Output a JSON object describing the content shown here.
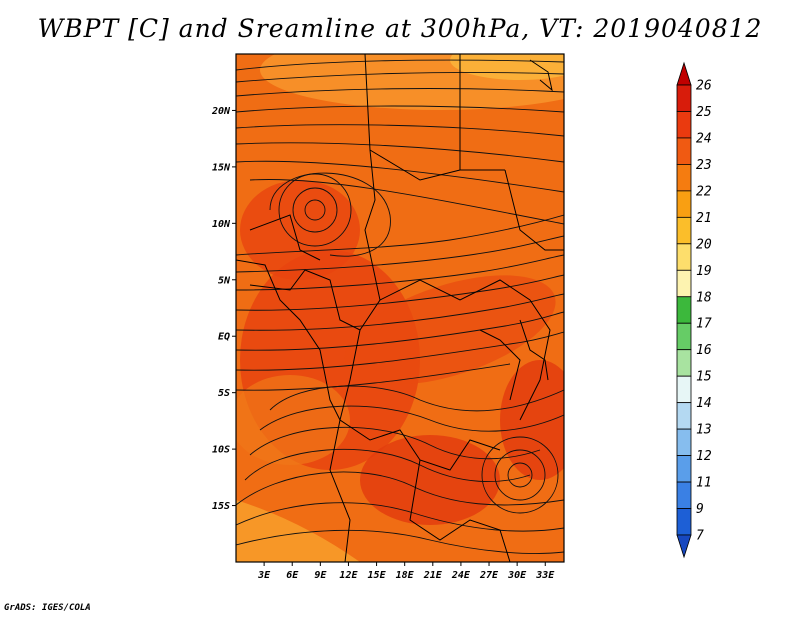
{
  "chart_data": {
    "type": "heatmap",
    "title": "WBPT [C] and Sreamline at 300hPa, VT: 2019040812",
    "variable": "WBPT [C]",
    "level": "300hPa",
    "valid_time": "2019040812",
    "x_axis": {
      "range": [
        0,
        35
      ],
      "ticks": [
        3,
        6,
        9,
        12,
        15,
        18,
        21,
        24,
        27,
        30,
        33
      ],
      "tick_labels": [
        "3E",
        "6E",
        "9E",
        "12E",
        "15E",
        "18E",
        "21E",
        "24E",
        "27E",
        "30E",
        "33E"
      ]
    },
    "y_axis": {
      "range": [
        -20,
        25
      ],
      "ticks": [
        20,
        15,
        10,
        5,
        0,
        -5,
        -10,
        -15
      ],
      "tick_labels": [
        "20N",
        "15N",
        "10N",
        "5N",
        "EQ",
        "5S",
        "10S",
        "15S"
      ]
    },
    "colorbar": {
      "levels": [
        "26",
        "25",
        "24",
        "23",
        "22",
        "21",
        "20",
        "19",
        "18",
        "17",
        "16",
        "15",
        "14",
        "13",
        "12",
        "11",
        "9",
        "7"
      ],
      "colors": [
        "#c00000",
        "#d81c0b",
        "#ea3a0f",
        "#f05a12",
        "#f57c10",
        "#f99f12",
        "#fbbe2a",
        "#fdde6c",
        "#fdf3b0",
        "#3cb83c",
        "#66cc66",
        "#a8e3a0",
        "#e7f6f6",
        "#b4d9f2",
        "#86bdee",
        "#5a9eea",
        "#3a80e4",
        "#1d5fd6",
        "#1748c0"
      ]
    },
    "field_description": "Wet-bulb potential temperature mostly 22–24 C over Central/East Africa, with streamline circulation.",
    "grid": false
  },
  "footer": "GrADS: IGES/COLA"
}
